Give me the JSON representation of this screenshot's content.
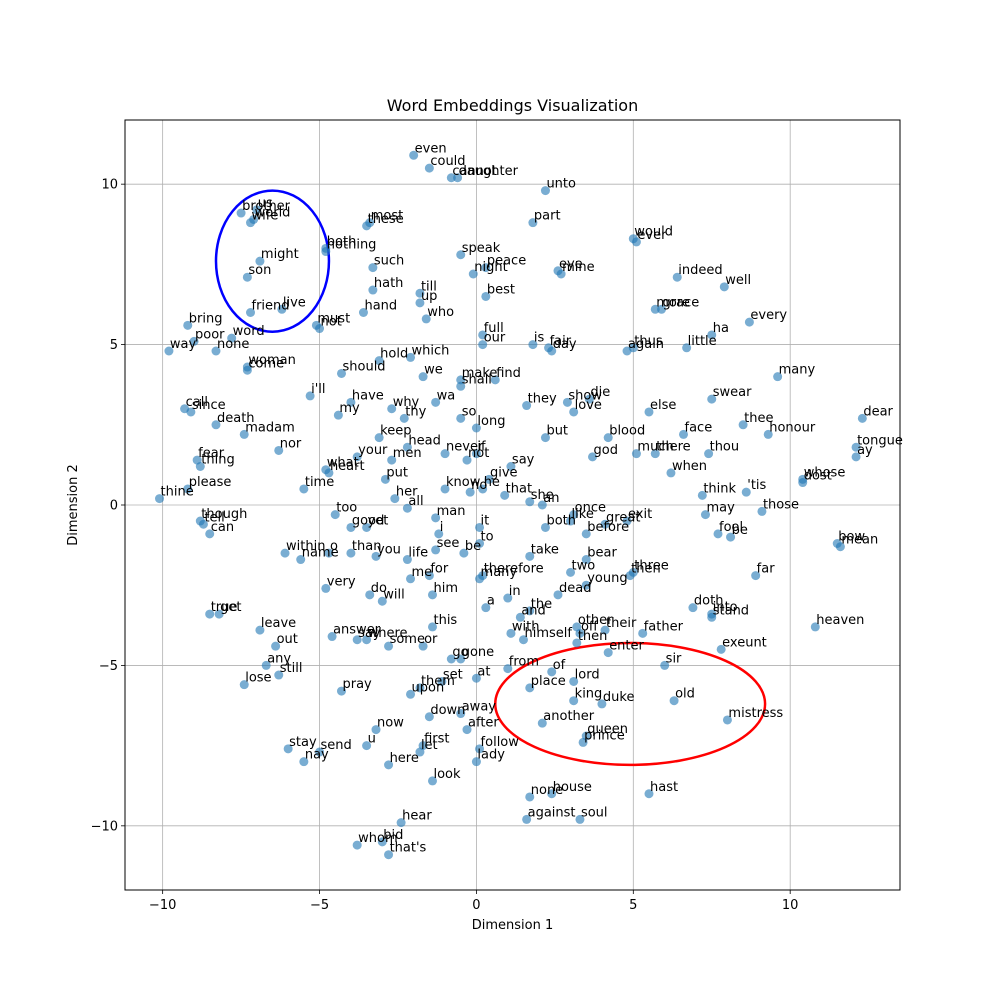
{
  "chart_data": {
    "type": "scatter",
    "title": "Word Embeddings Visualization",
    "xlabel": "Dimension 1",
    "ylabel": "Dimension 2",
    "xlim": [
      -11.2,
      13.5
    ],
    "ylim": [
      -12.0,
      12.0
    ],
    "xticks": [
      -10,
      -5,
      0,
      5,
      10
    ],
    "yticks": [
      -10,
      -5,
      0,
      5,
      10
    ],
    "grid": true,
    "point_color": "#1f77b4",
    "annotations": [
      {
        "shape": "ellipse",
        "color": "#0000ff",
        "cx": -6.5,
        "cy": 7.6,
        "rx": 1.8,
        "ry": 2.2
      },
      {
        "shape": "ellipse",
        "color": "#ff0000",
        "cx": 4.9,
        "cy": -6.2,
        "rx": 4.3,
        "ry": 1.9
      }
    ],
    "points": [
      {
        "word": "even",
        "x": -2.0,
        "y": 10.9
      },
      {
        "word": "could",
        "x": -1.5,
        "y": 10.5
      },
      {
        "word": "cannot",
        "x": -0.8,
        "y": 10.2
      },
      {
        "word": "daughter",
        "x": -0.6,
        "y": 10.2
      },
      {
        "word": "unto",
        "x": 2.2,
        "y": 9.8
      },
      {
        "word": "us",
        "x": -7.0,
        "y": 9.2
      },
      {
        "word": "brother",
        "x": -7.5,
        "y": 9.1
      },
      {
        "word": "world",
        "x": -7.1,
        "y": 8.9
      },
      {
        "word": "wife",
        "x": -7.2,
        "y": 8.8
      },
      {
        "word": "most",
        "x": -3.4,
        "y": 8.8
      },
      {
        "word": "these",
        "x": -3.5,
        "y": 8.7
      },
      {
        "word": "part",
        "x": 1.8,
        "y": 8.8
      },
      {
        "word": "would",
        "x": 5.0,
        "y": 8.3
      },
      {
        "word": "ever",
        "x": 5.1,
        "y": 8.2
      },
      {
        "word": "both",
        "x": -4.8,
        "y": 8.0
      },
      {
        "word": "nothing",
        "x": -4.8,
        "y": 7.9
      },
      {
        "word": "speak",
        "x": -0.5,
        "y": 7.8
      },
      {
        "word": "might",
        "x": -6.9,
        "y": 7.6
      },
      {
        "word": "such",
        "x": -3.3,
        "y": 7.4
      },
      {
        "word": "peace",
        "x": 0.3,
        "y": 7.4
      },
      {
        "word": "night",
        "x": -0.1,
        "y": 7.2
      },
      {
        "word": "eye",
        "x": 2.6,
        "y": 7.3
      },
      {
        "word": "mine",
        "x": 2.7,
        "y": 7.2
      },
      {
        "word": "son",
        "x": -7.3,
        "y": 7.1
      },
      {
        "word": "indeed",
        "x": 6.4,
        "y": 7.1
      },
      {
        "word": "well",
        "x": 7.9,
        "y": 6.8
      },
      {
        "word": "hath",
        "x": -3.3,
        "y": 6.7
      },
      {
        "word": "till",
        "x": -1.8,
        "y": 6.6
      },
      {
        "word": "best",
        "x": 0.3,
        "y": 6.5
      },
      {
        "word": "up",
        "x": -1.8,
        "y": 6.3
      },
      {
        "word": "live",
        "x": -6.2,
        "y": 6.1
      },
      {
        "word": "friend",
        "x": -7.2,
        "y": 6.0
      },
      {
        "word": "hand",
        "x": -3.6,
        "y": 6.0
      },
      {
        "word": "more",
        "x": 5.7,
        "y": 6.1
      },
      {
        "word": "grace",
        "x": 5.9,
        "y": 6.1
      },
      {
        "word": "who",
        "x": -1.6,
        "y": 5.8
      },
      {
        "word": "every",
        "x": 8.7,
        "y": 5.7
      },
      {
        "word": "bring",
        "x": -9.2,
        "y": 5.6
      },
      {
        "word": "must",
        "x": -5.1,
        "y": 5.6
      },
      {
        "word": "not",
        "x": -5.0,
        "y": 5.5
      },
      {
        "word": "full",
        "x": 0.2,
        "y": 5.3
      },
      {
        "word": "ha",
        "x": 7.5,
        "y": 5.3
      },
      {
        "word": "word",
        "x": -7.8,
        "y": 5.2
      },
      {
        "word": "poor",
        "x": -9.0,
        "y": 5.1
      },
      {
        "word": "our",
        "x": 0.2,
        "y": 5.0
      },
      {
        "word": "is",
        "x": 1.8,
        "y": 5.0
      },
      {
        "word": "fair",
        "x": 2.3,
        "y": 4.9
      },
      {
        "word": "day",
        "x": 2.4,
        "y": 4.8
      },
      {
        "word": "thus",
        "x": 5.0,
        "y": 4.9
      },
      {
        "word": "again",
        "x": 4.8,
        "y": 4.8
      },
      {
        "word": "little",
        "x": 6.7,
        "y": 4.9
      },
      {
        "word": "way",
        "x": -9.8,
        "y": 4.8
      },
      {
        "word": "none",
        "x": -8.3,
        "y": 4.8
      },
      {
        "word": "hold",
        "x": -3.1,
        "y": 4.5
      },
      {
        "word": "which",
        "x": -2.1,
        "y": 4.6
      },
      {
        "word": "woman",
        "x": -7.3,
        "y": 4.3
      },
      {
        "word": "come",
        "x": -7.3,
        "y": 4.2
      },
      {
        "word": "should",
        "x": -4.3,
        "y": 4.1
      },
      {
        "word": "we",
        "x": -1.7,
        "y": 4.0
      },
      {
        "word": "make",
        "x": -0.5,
        "y": 3.9
      },
      {
        "word": "find",
        "x": 0.6,
        "y": 3.9
      },
      {
        "word": "shall",
        "x": -0.5,
        "y": 3.7
      },
      {
        "word": "many",
        "x": 9.6,
        "y": 4.0
      },
      {
        "word": "i'll",
        "x": -5.3,
        "y": 3.4
      },
      {
        "word": "have",
        "x": -4.0,
        "y": 3.2
      },
      {
        "word": "wa",
        "x": -1.3,
        "y": 3.2
      },
      {
        "word": "die",
        "x": 3.6,
        "y": 3.3
      },
      {
        "word": "show",
        "x": 2.9,
        "y": 3.2
      },
      {
        "word": "they",
        "x": 1.6,
        "y": 3.1
      },
      {
        "word": "swear",
        "x": 7.5,
        "y": 3.3
      },
      {
        "word": "why",
        "x": -2.7,
        "y": 3.0
      },
      {
        "word": "call",
        "x": -9.3,
        "y": 3.0
      },
      {
        "word": "since",
        "x": -9.1,
        "y": 2.9
      },
      {
        "word": "love",
        "x": 3.1,
        "y": 2.9
      },
      {
        "word": "else",
        "x": 5.5,
        "y": 2.9
      },
      {
        "word": "my",
        "x": -4.4,
        "y": 2.8
      },
      {
        "word": "thy",
        "x": -2.3,
        "y": 2.7
      },
      {
        "word": "so",
        "x": -0.5,
        "y": 2.7
      },
      {
        "word": "dear",
        "x": 12.3,
        "y": 2.7
      },
      {
        "word": "long",
        "x": 0.0,
        "y": 2.4
      },
      {
        "word": "death",
        "x": -8.3,
        "y": 2.5
      },
      {
        "word": "thee",
        "x": 8.5,
        "y": 2.5
      },
      {
        "word": "madam",
        "x": -7.4,
        "y": 2.2
      },
      {
        "word": "keep",
        "x": -3.1,
        "y": 2.1
      },
      {
        "word": "but",
        "x": 2.2,
        "y": 2.1
      },
      {
        "word": "blood",
        "x": 4.2,
        "y": 2.1
      },
      {
        "word": "face",
        "x": 6.6,
        "y": 2.2
      },
      {
        "word": "honour",
        "x": 9.3,
        "y": 2.2
      },
      {
        "word": "tongue",
        "x": 12.1,
        "y": 1.8
      },
      {
        "word": "head",
        "x": -2.2,
        "y": 1.8
      },
      {
        "word": "nor",
        "x": -6.3,
        "y": 1.7
      },
      {
        "word": "never",
        "x": -1.0,
        "y": 1.6
      },
      {
        "word": "if",
        "x": 0.0,
        "y": 1.6
      },
      {
        "word": "much",
        "x": 5.1,
        "y": 1.6
      },
      {
        "word": "there",
        "x": 5.7,
        "y": 1.6
      },
      {
        "word": "thou",
        "x": 7.4,
        "y": 1.6
      },
      {
        "word": "ay",
        "x": 12.1,
        "y": 1.5
      },
      {
        "word": "your",
        "x": -3.8,
        "y": 1.5
      },
      {
        "word": "men",
        "x": -2.7,
        "y": 1.4
      },
      {
        "word": "god",
        "x": 3.7,
        "y": 1.5
      },
      {
        "word": "not",
        "x": -0.3,
        "y": 1.4
      },
      {
        "word": "fear",
        "x": -8.9,
        "y": 1.4
      },
      {
        "word": "thing",
        "x": -8.8,
        "y": 1.2
      },
      {
        "word": "what",
        "x": -4.8,
        "y": 1.1
      },
      {
        "word": "heart",
        "x": -4.7,
        "y": 1.0
      },
      {
        "word": "say",
        "x": 1.1,
        "y": 1.2
      },
      {
        "word": "when",
        "x": 6.2,
        "y": 1.0
      },
      {
        "word": "put",
        "x": -2.9,
        "y": 0.8
      },
      {
        "word": "give",
        "x": 0.4,
        "y": 0.8
      },
      {
        "word": "whose",
        "x": 10.4,
        "y": 0.8
      },
      {
        "word": "dost",
        "x": 10.4,
        "y": 0.7
      },
      {
        "word": "please",
        "x": -9.2,
        "y": 0.5
      },
      {
        "word": "time",
        "x": -5.5,
        "y": 0.5
      },
      {
        "word": "know",
        "x": -1.0,
        "y": 0.5
      },
      {
        "word": "he",
        "x": 0.2,
        "y": 0.5
      },
      {
        "word": "no",
        "x": -0.2,
        "y": 0.4
      },
      {
        "word": "that",
        "x": 0.9,
        "y": 0.3
      },
      {
        "word": "'tis",
        "x": 8.6,
        "y": 0.4
      },
      {
        "word": "think",
        "x": 7.2,
        "y": 0.3
      },
      {
        "word": "thine",
        "x": -10.1,
        "y": 0.2
      },
      {
        "word": "her",
        "x": -2.6,
        "y": 0.2
      },
      {
        "word": "she",
        "x": 1.7,
        "y": 0.1
      },
      {
        "word": "an",
        "x": 2.1,
        "y": 0.0
      },
      {
        "word": "all",
        "x": -2.2,
        "y": -0.1
      },
      {
        "word": "those",
        "x": 9.1,
        "y": -0.2
      },
      {
        "word": "too",
        "x": -4.5,
        "y": -0.3
      },
      {
        "word": "may",
        "x": 7.3,
        "y": -0.3
      },
      {
        "word": "once",
        "x": 3.1,
        "y": -0.3
      },
      {
        "word": "man",
        "x": -1.3,
        "y": -0.4
      },
      {
        "word": "like",
        "x": 3.0,
        "y": -0.5
      },
      {
        "word": "great",
        "x": 4.1,
        "y": -0.6
      },
      {
        "word": "exit",
        "x": 4.8,
        "y": -0.5
      },
      {
        "word": "though",
        "x": -8.8,
        "y": -0.5
      },
      {
        "word": "tell",
        "x": -8.7,
        "y": -0.6
      },
      {
        "word": "good",
        "x": -4.0,
        "y": -0.7
      },
      {
        "word": "yet",
        "x": -3.5,
        "y": -0.7
      },
      {
        "word": "it",
        "x": 0.1,
        "y": -0.7
      },
      {
        "word": "both",
        "x": 2.2,
        "y": -0.7
      },
      {
        "word": "before",
        "x": 3.5,
        "y": -0.9
      },
      {
        "word": "i",
        "x": -1.2,
        "y": -0.9
      },
      {
        "word": "can",
        "x": -8.5,
        "y": -0.9
      },
      {
        "word": "fool",
        "x": 7.7,
        "y": -0.9
      },
      {
        "word": "be",
        "x": 8.1,
        "y": -1.0
      },
      {
        "word": "to",
        "x": 0.1,
        "y": -1.2
      },
      {
        "word": "bow",
        "x": 11.5,
        "y": -1.2
      },
      {
        "word": "mean",
        "x": 11.6,
        "y": -1.3
      },
      {
        "word": "see",
        "x": -1.3,
        "y": -1.4
      },
      {
        "word": "be",
        "x": -0.4,
        "y": -1.5
      },
      {
        "word": "within",
        "x": -6.1,
        "y": -1.5
      },
      {
        "word": "o",
        "x": -4.7,
        "y": -1.5
      },
      {
        "word": "than",
        "x": -4.0,
        "y": -1.5
      },
      {
        "word": "you",
        "x": -3.2,
        "y": -1.6
      },
      {
        "word": "take",
        "x": 1.7,
        "y": -1.6
      },
      {
        "word": "name",
        "x": -5.6,
        "y": -1.7
      },
      {
        "word": "life",
        "x": -2.2,
        "y": -1.7
      },
      {
        "word": "bear",
        "x": 3.5,
        "y": -1.7
      },
      {
        "word": "two",
        "x": 3.0,
        "y": -2.1
      },
      {
        "word": "three",
        "x": 5.0,
        "y": -2.1
      },
      {
        "word": "then",
        "x": 4.9,
        "y": -2.2
      },
      {
        "word": "me",
        "x": -2.1,
        "y": -2.3
      },
      {
        "word": "for",
        "x": -1.5,
        "y": -2.2
      },
      {
        "word": "therefore",
        "x": 0.2,
        "y": -2.2
      },
      {
        "word": "many",
        "x": 0.1,
        "y": -2.3
      },
      {
        "word": "young",
        "x": 3.5,
        "y": -2.5
      },
      {
        "word": "far",
        "x": 8.9,
        "y": -2.2
      },
      {
        "word": "very",
        "x": -4.8,
        "y": -2.6
      },
      {
        "word": "do",
        "x": -3.4,
        "y": -2.8
      },
      {
        "word": "will",
        "x": -3.0,
        "y": -3.0
      },
      {
        "word": "him",
        "x": -1.4,
        "y": -2.8
      },
      {
        "word": "dead",
        "x": 2.6,
        "y": -2.8
      },
      {
        "word": "in",
        "x": 1.0,
        "y": -2.9
      },
      {
        "word": "a",
        "x": 0.3,
        "y": -3.2
      },
      {
        "word": "the",
        "x": 1.7,
        "y": -3.3
      },
      {
        "word": "doth",
        "x": 6.9,
        "y": -3.2
      },
      {
        "word": "into",
        "x": 7.5,
        "y": -3.4
      },
      {
        "word": "stand",
        "x": 7.5,
        "y": -3.5
      },
      {
        "word": "true",
        "x": -8.5,
        "y": -3.4
      },
      {
        "word": "get",
        "x": -8.2,
        "y": -3.4
      },
      {
        "word": "and",
        "x": 1.4,
        "y": -3.5
      },
      {
        "word": "heaven",
        "x": 10.8,
        "y": -3.8
      },
      {
        "word": "this",
        "x": -1.4,
        "y": -3.8
      },
      {
        "word": "leave",
        "x": -6.9,
        "y": -3.9
      },
      {
        "word": "other",
        "x": 3.2,
        "y": -3.8
      },
      {
        "word": "their",
        "x": 4.1,
        "y": -3.9
      },
      {
        "word": "off",
        "x": 3.3,
        "y": -4.0
      },
      {
        "word": "father",
        "x": 5.3,
        "y": -4.0
      },
      {
        "word": "with",
        "x": 1.1,
        "y": -4.0
      },
      {
        "word": "himself",
        "x": 1.5,
        "y": -4.2
      },
      {
        "word": "answer",
        "x": -4.6,
        "y": -4.1
      },
      {
        "word": "say",
        "x": -3.8,
        "y": -4.2
      },
      {
        "word": "where",
        "x": -3.5,
        "y": -4.2
      },
      {
        "word": "some",
        "x": -2.8,
        "y": -4.4
      },
      {
        "word": "or",
        "x": -1.7,
        "y": -4.4
      },
      {
        "word": "then",
        "x": 3.2,
        "y": -4.3
      },
      {
        "word": "out",
        "x": -6.4,
        "y": -4.4
      },
      {
        "word": "enter",
        "x": 4.2,
        "y": -4.6
      },
      {
        "word": "exeunt",
        "x": 7.8,
        "y": -4.5
      },
      {
        "word": "go",
        "x": -0.8,
        "y": -4.8
      },
      {
        "word": "gone",
        "x": -0.5,
        "y": -4.8
      },
      {
        "word": "any",
        "x": -6.7,
        "y": -5.0
      },
      {
        "word": "sir",
        "x": 6.0,
        "y": -5.0
      },
      {
        "word": "from",
        "x": 1.0,
        "y": -5.1
      },
      {
        "word": "of",
        "x": 2.4,
        "y": -5.2
      },
      {
        "word": "still",
        "x": -6.3,
        "y": -5.3
      },
      {
        "word": "at",
        "x": 0.0,
        "y": -5.4
      },
      {
        "word": "set",
        "x": -1.1,
        "y": -5.5
      },
      {
        "word": "lord",
        "x": 3.1,
        "y": -5.5
      },
      {
        "word": "lose",
        "x": -7.4,
        "y": -5.6
      },
      {
        "word": "place",
        "x": 1.7,
        "y": -5.7
      },
      {
        "word": "pray",
        "x": -4.3,
        "y": -5.8
      },
      {
        "word": "them",
        "x": -1.8,
        "y": -5.7
      },
      {
        "word": "upon",
        "x": -2.1,
        "y": -5.9
      },
      {
        "word": "king",
        "x": 3.1,
        "y": -6.1
      },
      {
        "word": "duke",
        "x": 4.0,
        "y": -6.2
      },
      {
        "word": "old",
        "x": 6.3,
        "y": -6.1
      },
      {
        "word": "away",
        "x": -0.5,
        "y": -6.5
      },
      {
        "word": "down",
        "x": -1.5,
        "y": -6.6
      },
      {
        "word": "mistress",
        "x": 8.0,
        "y": -6.7
      },
      {
        "word": "another",
        "x": 2.1,
        "y": -6.8
      },
      {
        "word": "after",
        "x": -0.3,
        "y": -7.0
      },
      {
        "word": "now",
        "x": -3.2,
        "y": -7.0
      },
      {
        "word": "queen",
        "x": 3.5,
        "y": -7.2
      },
      {
        "word": "prince",
        "x": 3.4,
        "y": -7.4
      },
      {
        "word": "u",
        "x": -3.5,
        "y": -7.5
      },
      {
        "word": "first",
        "x": -1.7,
        "y": -7.5
      },
      {
        "word": "follow",
        "x": 0.1,
        "y": -7.6
      },
      {
        "word": "stay",
        "x": -6.0,
        "y": -7.6
      },
      {
        "word": "send",
        "x": -5.0,
        "y": -7.7
      },
      {
        "word": "let",
        "x": -1.8,
        "y": -7.7
      },
      {
        "word": "lady",
        "x": 0.0,
        "y": -8.0
      },
      {
        "word": "nay",
        "x": -5.5,
        "y": -8.0
      },
      {
        "word": "here",
        "x": -2.8,
        "y": -8.1
      },
      {
        "word": "look",
        "x": -1.4,
        "y": -8.6
      },
      {
        "word": "hast",
        "x": 5.5,
        "y": -9.0
      },
      {
        "word": "house",
        "x": 2.4,
        "y": -9.0
      },
      {
        "word": "none",
        "x": 1.7,
        "y": -9.1
      },
      {
        "word": "against",
        "x": 1.6,
        "y": -9.8
      },
      {
        "word": "soul",
        "x": 3.3,
        "y": -9.8
      },
      {
        "word": "hear",
        "x": -2.4,
        "y": -9.9
      },
      {
        "word": "whom",
        "x": -3.8,
        "y": -10.6
      },
      {
        "word": "bid",
        "x": -3.0,
        "y": -10.5
      },
      {
        "word": "that's",
        "x": -2.8,
        "y": -10.9
      }
    ]
  }
}
